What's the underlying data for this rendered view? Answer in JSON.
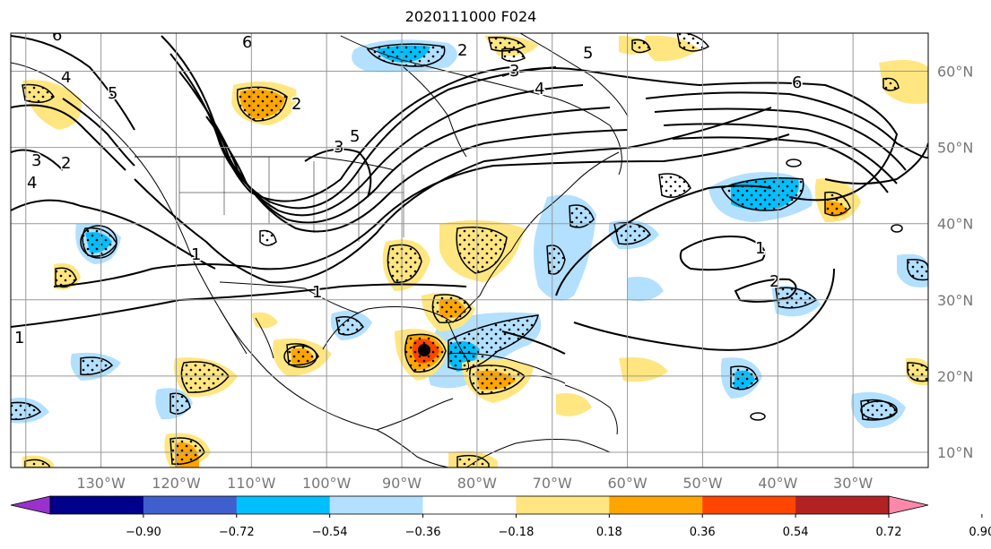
{
  "map": {
    "title": "2020111000 F024",
    "extent": {
      "lon_min": -142,
      "lon_max": -20,
      "lat_min": 8,
      "lat_max": 65
    },
    "lon_lines": [
      -140,
      -130,
      -120,
      -110,
      -100,
      -90,
      -80,
      -70,
      -60,
      -50,
      -40,
      -30
    ],
    "lat_lines": [
      10,
      20,
      30,
      40,
      50,
      60
    ],
    "lon_labels": [
      "130°W",
      "120°W",
      "110°W",
      "100°W",
      "90°W",
      "80°W",
      "70°W",
      "60°W",
      "50°W",
      "40°W",
      "30°W"
    ],
    "lon_label_values": [
      -130,
      -120,
      -110,
      -100,
      -90,
      -80,
      -70,
      -60,
      -50,
      -40,
      -30
    ],
    "lat_labels": [
      "10°N",
      "20°N",
      "30°N",
      "40°N",
      "50°N",
      "60°N"
    ],
    "lat_label_values": [
      10,
      20,
      30,
      40,
      50,
      60
    ],
    "contour_labels": [
      "6",
      "6",
      "5",
      "4",
      "3",
      "2",
      "1",
      "6",
      "4",
      "5",
      "4",
      "3",
      "2",
      "1",
      "1",
      "2",
      "1",
      "5",
      "3",
      "2"
    ],
    "fill_colors": {
      "pos_1": "#ffe680",
      "pos_2": "#ffa500",
      "pos_3": "#ff4500",
      "neg_1": "#b3e0ff",
      "neg_2": "#00bfff",
      "extreme": "#000000"
    }
  },
  "colorbar": {
    "colors": [
      "#9932cc",
      "#00008b",
      "#3f5fcf",
      "#00bfff",
      "#b3e0ff",
      "#ffffff",
      "#ffe680",
      "#ffa500",
      "#ff4500",
      "#b22222",
      "#ff88aa"
    ],
    "tick_labels": [
      "−0.90",
      "−0.72",
      "−0.54",
      "−0.36",
      "−0.18",
      "0.18",
      "0.36",
      "0.54",
      "0.72",
      "0.90"
    ]
  }
}
